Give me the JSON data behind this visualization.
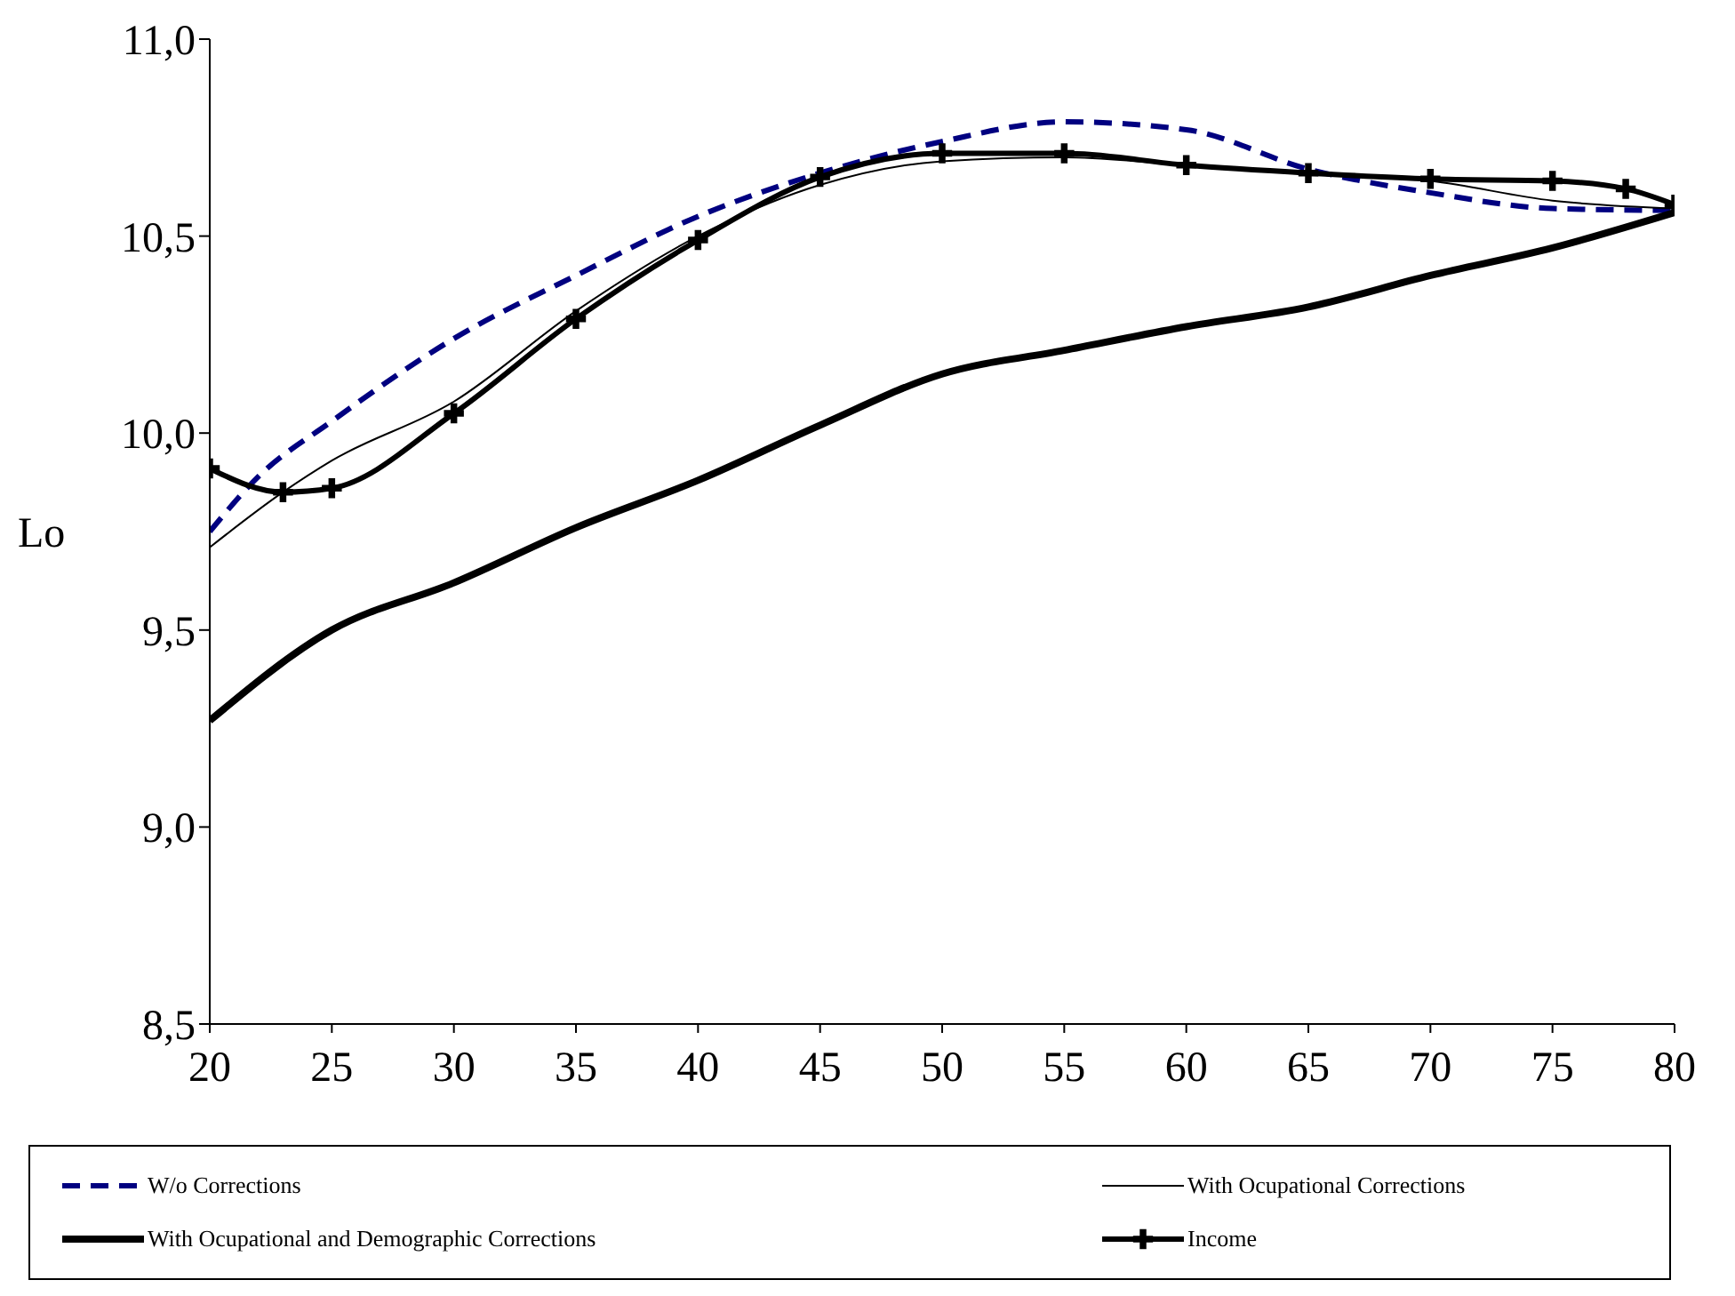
{
  "chart_data": {
    "type": "line",
    "ylabel": "Lo",
    "xlim": [
      20,
      80
    ],
    "xticks": [
      20,
      25,
      30,
      35,
      40,
      45,
      50,
      55,
      60,
      65,
      70,
      75,
      80
    ],
    "ylim": [
      8.5,
      11
    ],
    "yticks": [
      {
        "value": 8.5,
        "label": "8,5"
      },
      {
        "value": 9,
        "label": "9,0"
      },
      {
        "value": 9.5,
        "label": "9,5"
      },
      {
        "value": 10,
        "label": "10,0"
      },
      {
        "value": 10.5,
        "label": "10,5"
      },
      {
        "value": 11,
        "label": "11,0"
      }
    ],
    "grid": false,
    "legend": "bottom",
    "series": [
      {
        "name": "W/o Corrections",
        "color": "#000080",
        "line_style": "dashed",
        "marker": "none",
        "x": [
          20,
          22,
          25,
          30,
          35,
          40,
          45,
          50,
          55,
          60,
          65,
          70,
          75,
          80
        ],
        "values": [
          9.75,
          9.89,
          10.03,
          10.24,
          10.4,
          10.55,
          10.66,
          10.74,
          10.79,
          10.77,
          10.67,
          10.61,
          10.57,
          10.565
        ]
      },
      {
        "name": "With Ocupational Corrections",
        "color": "#000000",
        "line_style": "solid",
        "marker": "none",
        "x": [
          20,
          23,
          25,
          30,
          35,
          40,
          45,
          50,
          55,
          60,
          65,
          70,
          75,
          80
        ],
        "values": [
          9.71,
          9.85,
          9.93,
          10.08,
          10.31,
          10.5,
          10.63,
          10.69,
          10.7,
          10.68,
          10.66,
          10.64,
          10.59,
          10.57
        ]
      },
      {
        "name": "With Ocupational and Demographic Corrections",
        "color": "#000000",
        "line_style": "solid",
        "marker": "none",
        "x": [
          20,
          25,
          30,
          35,
          40,
          45,
          50,
          55,
          60,
          65,
          70,
          75,
          80
        ],
        "values": [
          9.27,
          9.5,
          9.62,
          9.76,
          9.88,
          10.02,
          10.15,
          10.21,
          10.27,
          10.32,
          10.4,
          10.47,
          10.56
        ]
      },
      {
        "name": "Income",
        "color": "#000000",
        "line_style": "solid",
        "marker": "cross",
        "x": [
          20,
          23,
          25,
          30,
          35,
          40,
          45,
          50,
          55,
          60,
          65,
          70,
          75,
          78,
          80
        ],
        "values": [
          9.91,
          9.85,
          9.86,
          10.05,
          10.29,
          10.49,
          10.65,
          10.71,
          10.71,
          10.68,
          10.66,
          10.645,
          10.64,
          10.62,
          10.58
        ]
      }
    ]
  }
}
